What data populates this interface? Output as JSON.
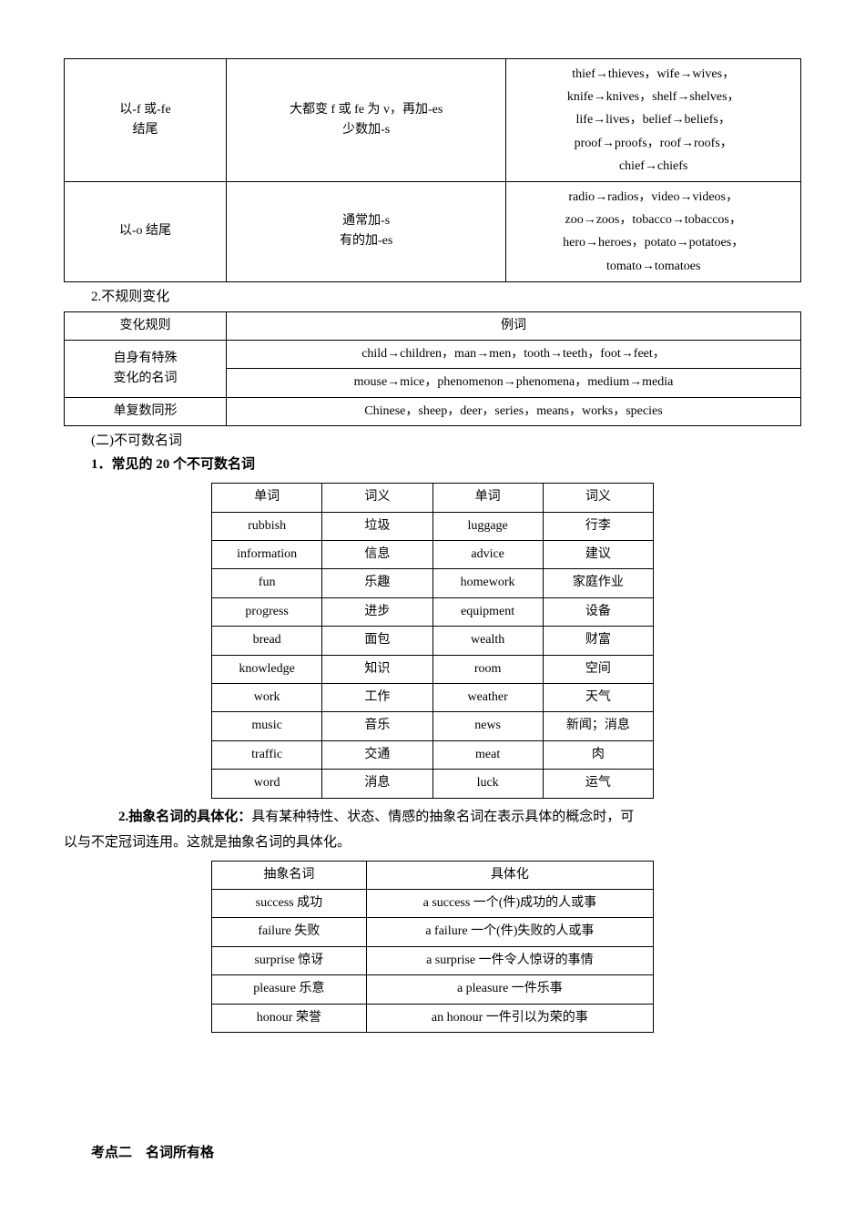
{
  "table1": {
    "rows": [
      {
        "col1_line1": "以-f 或-fe",
        "col1_line2": "结尾",
        "col2_line1": "大都变 f 或 fe 为 v，再加-es",
        "col2_line2": "少数加-s",
        "col3_line1": "thief→thieves，wife→wives，",
        "col3_line2": "knife→knives，shelf→shelves，",
        "col3_line3": "life→lives，belief→beliefs，",
        "col3_line4": "proof→proofs，roof→roofs，",
        "col3_line5": "chief→chiefs"
      },
      {
        "col1": "以-o 结尾",
        "col2_line1": "通常加-s",
        "col2_line2": "有的加-es",
        "col3_line1": "radio→radios，video→videos，",
        "col3_line2": "zoo→zoos，tobacco→tobaccos，",
        "col3_line3": "hero→heroes，potato→potatoes，",
        "col3_line4": "tomato→tomatoes"
      }
    ]
  },
  "heading_irregular": "2.不规则变化",
  "table2": {
    "header": {
      "c1": "变化规则",
      "c2": "例词"
    },
    "rows": [
      {
        "c1_line1": "自身有特殊",
        "c1_line2": "变化的名词",
        "c2_line1": "child→children，man→men，tooth→teeth，foot→feet，",
        "c2_line2": "mouse→mice，phenomenon→phenomena，medium→media"
      },
      {
        "c1": "单复数同形",
        "c2": "Chinese，sheep，deer，series，means，works，species"
      }
    ]
  },
  "heading_uncountable": "(二)不可数名词",
  "heading_common20": "1．常见的 20 个不可数名词",
  "table3": {
    "header": {
      "c1": "单词",
      "c2": "词义",
      "c3": "单词",
      "c4": "词义"
    },
    "rows": [
      {
        "c1": "rubbish",
        "c2": "垃圾",
        "c3": "luggage",
        "c4": "行李"
      },
      {
        "c1": "information",
        "c2": "信息",
        "c3": "advice",
        "c4": "建议"
      },
      {
        "c1": "fun",
        "c2": "乐趣",
        "c3": "homework",
        "c4": "家庭作业"
      },
      {
        "c1": "progress",
        "c2": "进步",
        "c3": "equipment",
        "c4": "设备"
      },
      {
        "c1": "bread",
        "c2": "面包",
        "c3": "wealth",
        "c4": "财富"
      },
      {
        "c1": "knowledge",
        "c2": "知识",
        "c3": "room",
        "c4": "空间"
      },
      {
        "c1": "work",
        "c2": "工作",
        "c3": "weather",
        "c4": "天气"
      },
      {
        "c1": "music",
        "c2": "音乐",
        "c3": "news",
        "c4": "新闻；消息"
      },
      {
        "c1": "traffic",
        "c2": "交通",
        "c3": "meat",
        "c4": "肉"
      },
      {
        "c1": "word",
        "c2": "消息",
        "c3": "luck",
        "c4": "运气"
      }
    ]
  },
  "abstract_para_bold": "2.抽象名词的具体化：",
  "abstract_para_rest1": "具有某种特性、状态、情感的抽象名词在表示具体的概念时，可",
  "abstract_para_rest2": "以与不定冠词连用。这就是抽象名词的具体化。",
  "table4": {
    "header": {
      "c1": "抽象名词",
      "c2": "具体化"
    },
    "rows": [
      {
        "c1": "success 成功",
        "c2": "a success 一个(件)成功的人或事"
      },
      {
        "c1": "failure 失败",
        "c2": "a failure  一个(件)失败的人或事"
      },
      {
        "c1": "surprise 惊讶",
        "c2": "a surprise 一件令人惊讶的事情"
      },
      {
        "c1": "pleasure 乐意",
        "c2": "a pleasure 一件乐事"
      },
      {
        "c1": "honour 荣誉",
        "c2": "an honour 一件引以为荣的事"
      }
    ]
  },
  "section2_title": "考点二　名词所有格"
}
